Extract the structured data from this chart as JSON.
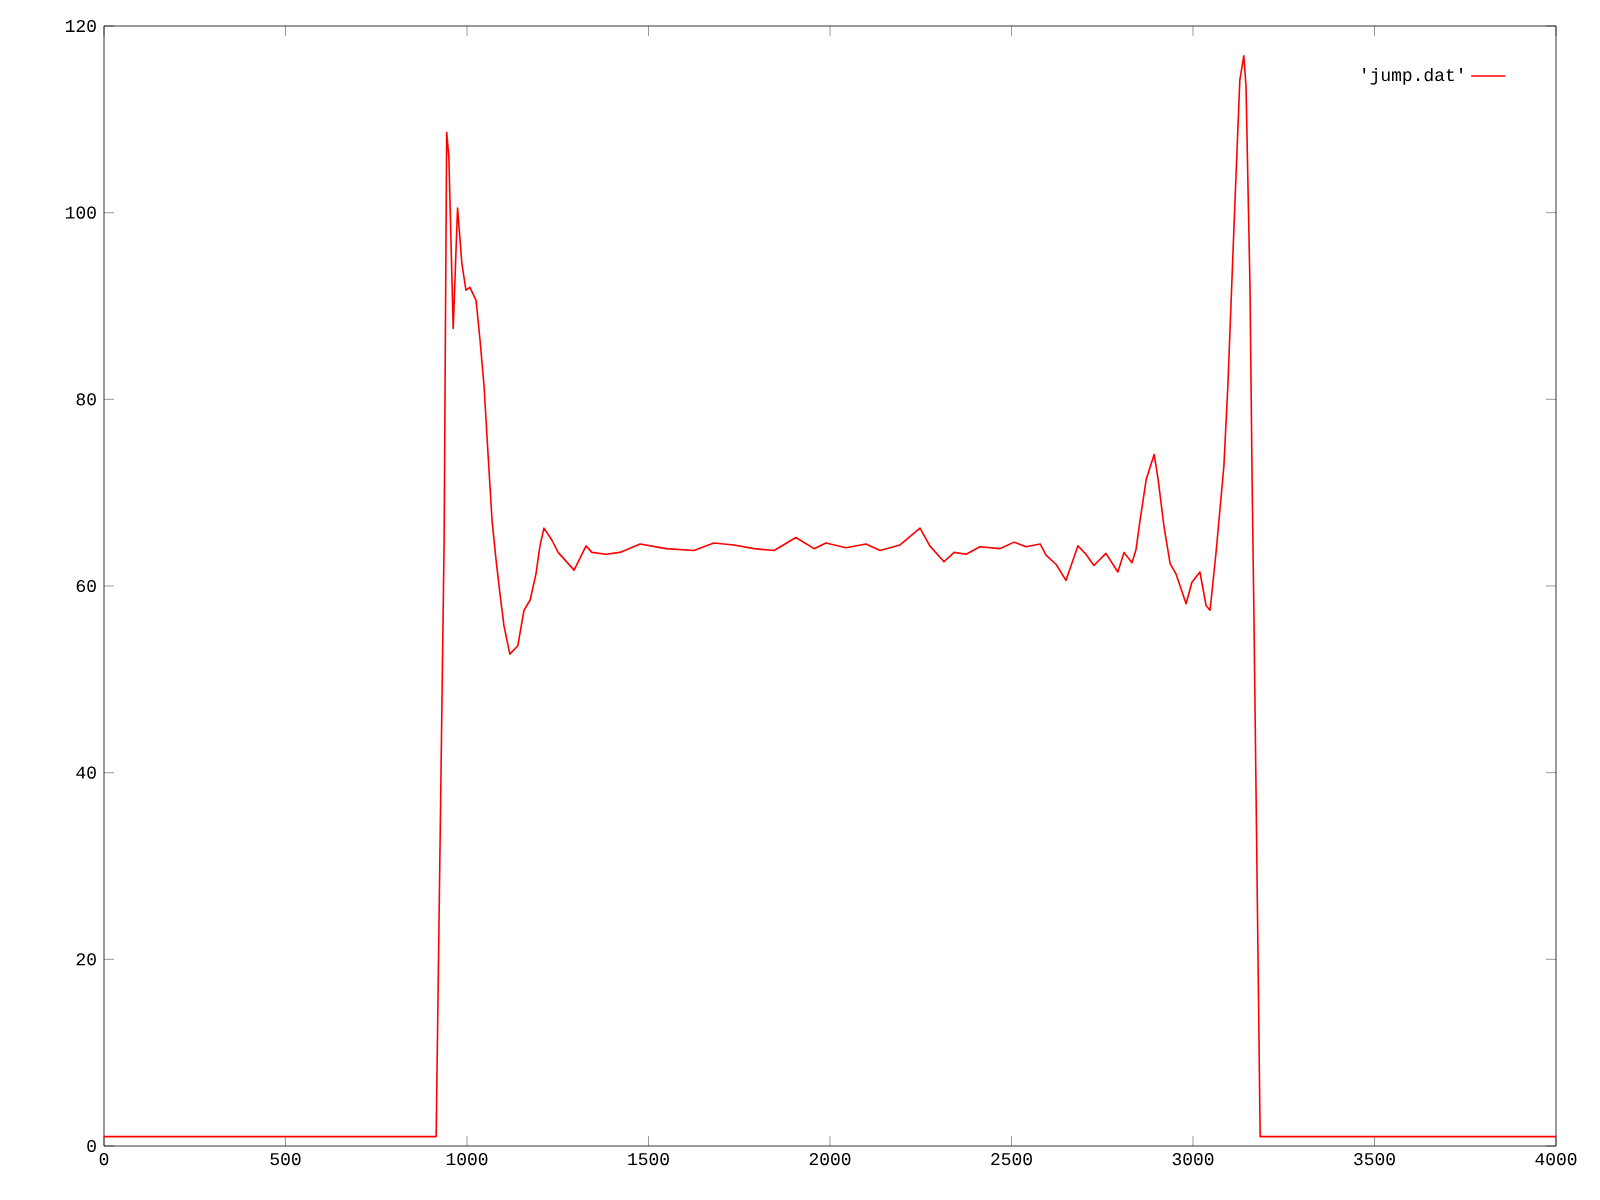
{
  "chart_data": {
    "type": "line",
    "legend": "top right",
    "grid": false,
    "marker": "none",
    "line_style": "solid",
    "xlim": [
      0,
      4000
    ],
    "ylim": [
      0,
      120
    ],
    "xticks": [
      0,
      500,
      1000,
      1500,
      2000,
      2500,
      3000,
      3500,
      4000
    ],
    "yticks": [
      0,
      20,
      40,
      60,
      80,
      100,
      120
    ],
    "series": [
      {
        "name": "'jump.dat'",
        "color": "#ff0000",
        "x": [
          0,
          200,
          400,
          600,
          800,
          915,
          937,
          940,
          944,
          950,
          962,
          974,
          986,
          997,
          1008,
          1025,
          1036,
          1047,
          1058,
          1069,
          1080,
          1091,
          1102,
          1118,
          1140,
          1157,
          1174,
          1190,
          1201,
          1212,
          1234,
          1251,
          1295,
          1328,
          1344,
          1383,
          1421,
          1477,
          1548,
          1625,
          1680,
          1735,
          1791,
          1846,
          1906,
          1956,
          1989,
          2044,
          2099,
          2138,
          2193,
          2248,
          2275,
          2314,
          2342,
          2375,
          2413,
          2468,
          2507,
          2540,
          2579,
          2595,
          2623,
          2650,
          2683,
          2705,
          2727,
          2760,
          2793,
          2810,
          2832,
          2843,
          2854,
          2871,
          2893,
          2904,
          2920,
          2937,
          2953,
          2981,
          2997,
          3019,
          3036,
          3047,
          3063,
          3085,
          3096,
          3113,
          3129,
          3140,
          3146,
          3157,
          3163,
          3168,
          3185,
          3300,
          3500,
          3700,
          3900,
          4000
        ],
        "values": [
          1,
          1,
          1,
          1,
          1,
          1,
          65,
          84,
          108.6,
          106,
          87.6,
          100.5,
          94.5,
          91.7,
          92,
          90.6,
          86.3,
          81.4,
          74.1,
          67,
          62.8,
          59.1,
          55.7,
          52.7,
          53.6,
          57.4,
          58.5,
          61.3,
          64.3,
          66.2,
          64.9,
          63.6,
          61.7,
          64.3,
          63.6,
          63.4,
          63.6,
          64.5,
          64,
          63.8,
          64.6,
          64.4,
          64,
          63.8,
          65.2,
          64,
          64.6,
          64.1,
          64.5,
          63.8,
          64.4,
          66.2,
          64.3,
          62.6,
          63.6,
          63.4,
          64.2,
          64,
          64.7,
          64.2,
          64.5,
          63.3,
          62.3,
          60.6,
          64.3,
          63.4,
          62.2,
          63.5,
          61.5,
          63.6,
          62.5,
          63.9,
          67,
          71.4,
          74.1,
          71.4,
          66.4,
          62.4,
          61.3,
          58.1,
          60.4,
          61.5,
          57.9,
          57.4,
          63.4,
          72.8,
          81.4,
          98.6,
          114.2,
          116.8,
          113.6,
          92,
          70.7,
          56.4,
          1,
          1,
          1,
          1,
          1,
          1
        ]
      }
    ]
  }
}
